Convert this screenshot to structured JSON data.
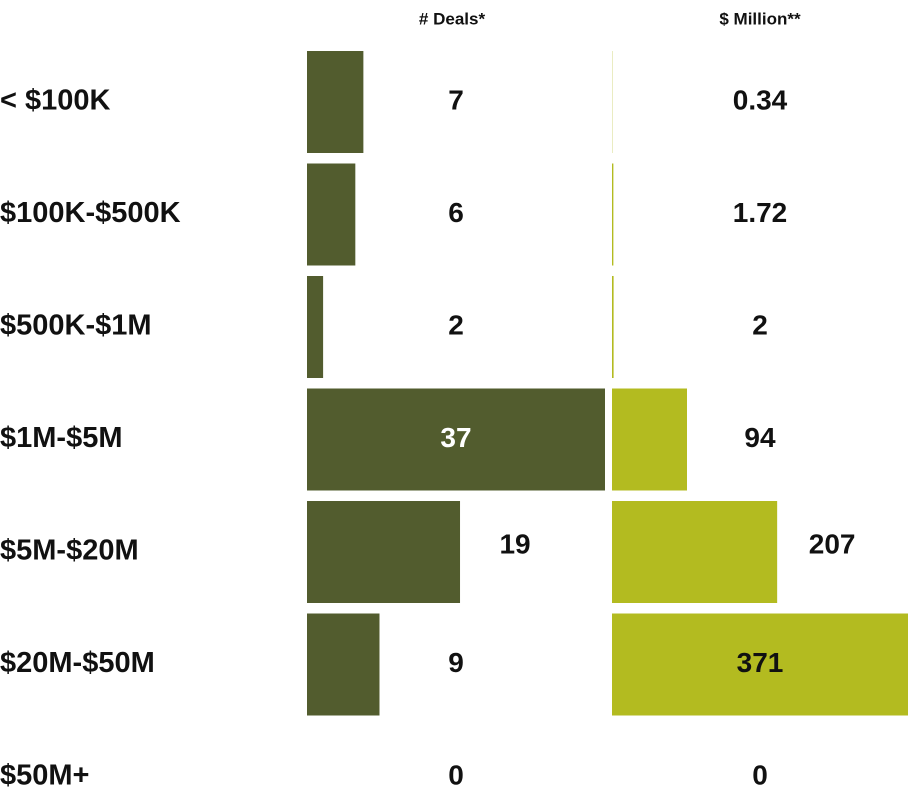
{
  "chart_data": {
    "type": "bar",
    "orientation": "horizontal",
    "categories": [
      "< $100K",
      "$100K-$500K",
      "$500K-$1M",
      "$1M-$5M",
      "$5M-$20M",
      "$20M-$50M",
      "$50M+"
    ],
    "series": [
      {
        "name": "# Deals*",
        "color": "#525c2e",
        "values": [
          7,
          6,
          2,
          37,
          19,
          9,
          0
        ]
      },
      {
        "name": "$ Million**",
        "color": "#b3bb20",
        "values": [
          0.34,
          1.72,
          2,
          94,
          207,
          371,
          0
        ]
      }
    ]
  }
}
